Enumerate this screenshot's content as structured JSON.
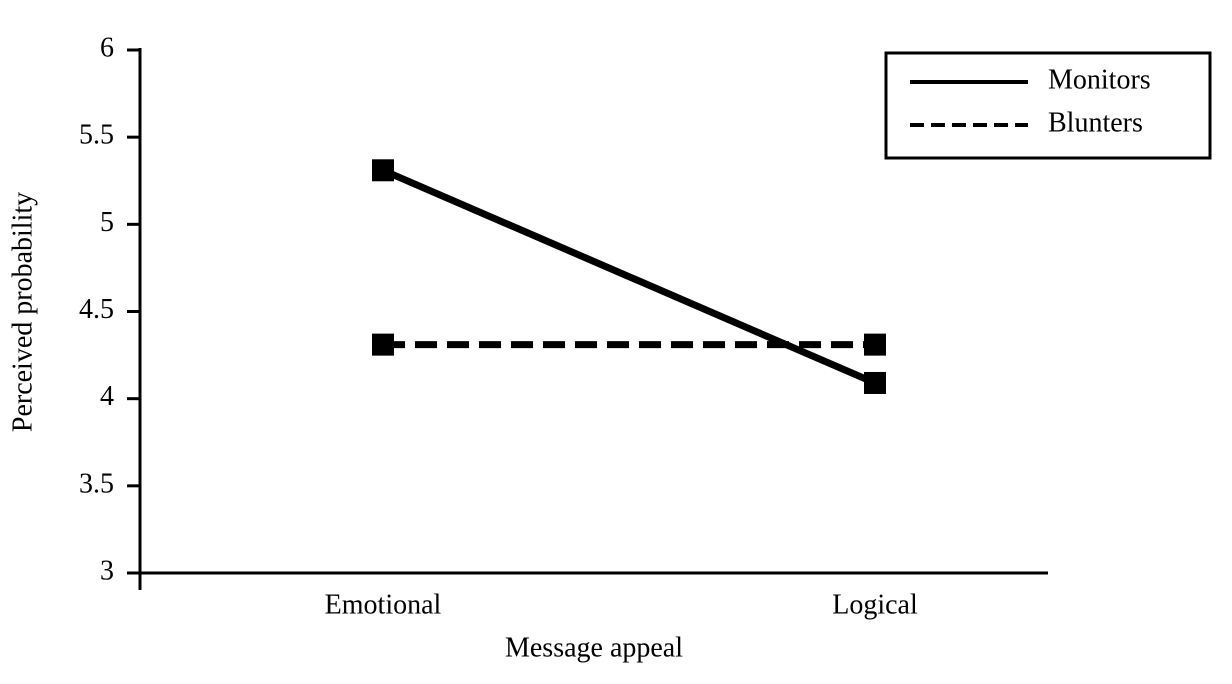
{
  "chart_data": {
    "type": "line",
    "x_label": "Message appeal",
    "y_label": "Perceived probability",
    "categories": [
      "Emotional",
      "Logical"
    ],
    "series": [
      {
        "name": "Monitors",
        "color": "#000000",
        "dash": "solid",
        "values": [
          5.31,
          4.09
        ]
      },
      {
        "name": "Blunters",
        "color": "#000000",
        "dash": "dashed",
        "values": [
          4.31,
          4.31
        ]
      }
    ],
    "ylim": [
      3,
      6
    ],
    "yticks": [
      3,
      3.5,
      4,
      4.5,
      5,
      5.5,
      6
    ],
    "grid": false,
    "legend": "upper right"
  }
}
